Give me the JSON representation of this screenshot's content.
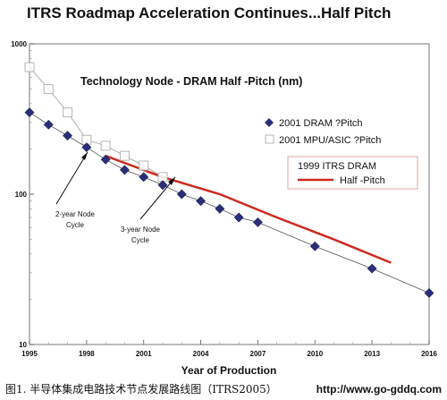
{
  "title": "ITRS Roadmap Acceleration Continues...Half Pitch",
  "subtitle": "Technology Node  - DRAM Half -Pitch (nm)",
  "caption": "图1.  半导体集成电路技术节点发展路线图（ITRS2005）",
  "watermark_url": "http://www.go-gddq.com",
  "chart_data": {
    "type": "line",
    "title": "ITRS Roadmap Acceleration Continues...Half Pitch",
    "subtitle": "Technology Node  - DRAM Half -Pitch (nm)",
    "xlabel": "Year of Production",
    "ylabel": "",
    "yscale": "log",
    "xlim": [
      1995,
      2016
    ],
    "ylim": [
      10,
      1000
    ],
    "x_ticks": [
      "1995",
      "1998",
      "2001",
      "2004",
      "2007",
      "2010",
      "2013",
      "2016"
    ],
    "y_ticks": [
      "1000",
      "100",
      "10"
    ],
    "grid": false,
    "legend_placement": "right",
    "series": [
      {
        "name": "2001 DRAM ?Pitch",
        "marker": "diamond",
        "color": "#2b2f7a",
        "x": [
          1995,
          1996,
          1997,
          1998,
          1999,
          2000,
          2001,
          2002,
          2003,
          2004,
          2005,
          2006,
          2007,
          2010,
          2013,
          2016
        ],
        "y": [
          350,
          290,
          245,
          205,
          170,
          145,
          130,
          115,
          100,
          90,
          80,
          70,
          65,
          45,
          32,
          22
        ]
      },
      {
        "name": "2001 MPU/ASIC ?Pitch",
        "marker": "square-open",
        "color": "#c9c9c9",
        "x": [
          1995,
          1996,
          1997,
          1998,
          1999,
          2000,
          2001,
          2002
        ],
        "y": [
          700,
          500,
          350,
          230,
          210,
          180,
          155,
          130
        ]
      },
      {
        "name": "1999 ITRS DRAM Half-Pitch",
        "marker": "none",
        "color": "#cc2a1e",
        "x": [
          1999,
          2002,
          2005,
          2008,
          2011,
          2014
        ],
        "y": [
          180,
          130,
          100,
          70,
          50,
          35
        ]
      }
    ],
    "legend": {
      "entry1": "2001 DRAM ?Pitch",
      "entry2": "2001 MPU/ASIC ?Pitch",
      "box_line1": "1999 ITRS DRAM",
      "box_line2": "Half -Pitch"
    },
    "annotations": [
      {
        "line1": "2-year Node",
        "line2": "Cycle"
      },
      {
        "line1": "3-year Node",
        "line2": "Cycle"
      }
    ]
  }
}
